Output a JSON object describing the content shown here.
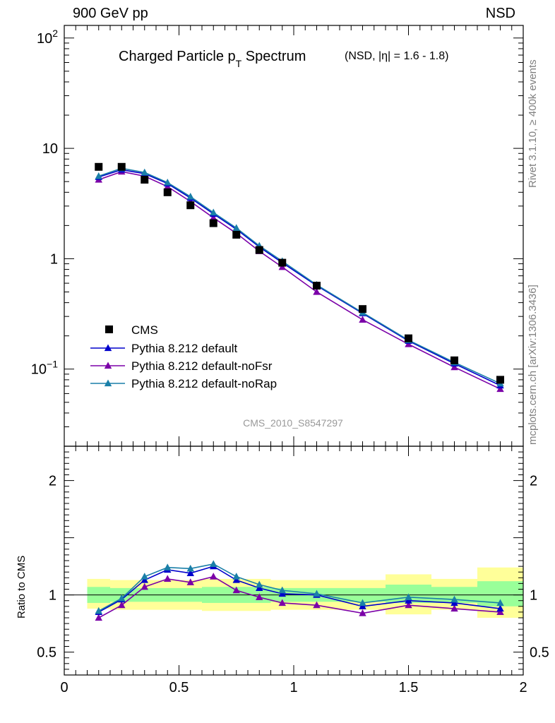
{
  "header": {
    "left": "900 GeV pp",
    "right": "NSD"
  },
  "side_labels": {
    "rivet": "Rivet 3.1.10, ≥ 400k events",
    "mcplots": "mcplots.cern.ch [arXiv:1306.3436]"
  },
  "chart_data": {
    "type": "scatter",
    "title_main": "Charged Particle p",
    "title_sub": "T",
    "title_tail": " Spectrum",
    "title_small": "(NSD, |η| = 1.6 - 1.8)",
    "watermark": "CMS_2010_S8547297",
    "xlim": [
      0,
      2
    ],
    "ylim_main": [
      0.02,
      130
    ],
    "ylim_ratio": [
      0.3,
      2.3
    ],
    "ratio_ylabel": "Ratio to CMS",
    "x_ticks": [
      "0",
      "0.5",
      "1",
      "1.5",
      "2"
    ],
    "main_ticks": [
      "10",
      "1"
    ],
    "main_ticks_exp": [
      {
        "base": "10",
        "exp": "2"
      },
      {
        "base": "10",
        "exp": "−1"
      }
    ],
    "ratio_ticks": [
      "2",
      "1",
      "0.5"
    ],
    "ratio_ticks_right": [
      "2",
      "1",
      "0.5"
    ],
    "data": {
      "name": "CMS",
      "x": [
        0.15,
        0.25,
        0.35,
        0.45,
        0.55,
        0.65,
        0.75,
        0.85,
        0.95,
        1.1,
        1.3,
        1.5,
        1.7,
        1.9
      ],
      "y": [
        6.8,
        6.8,
        5.2,
        4.0,
        3.05,
        2.1,
        1.65,
        1.2,
        0.92,
        0.57,
        0.35,
        0.19,
        0.12,
        0.08
      ]
    },
    "series": [
      {
        "name": "Pythia 8.212 default",
        "color": "#0000cc",
        "values": [
          5.5,
          6.4,
          5.9,
          4.8,
          3.55,
          2.55,
          1.85,
          1.28,
          0.92,
          0.57,
          0.32,
          0.18,
          0.112,
          0.071
        ],
        "ratio": [
          0.85,
          0.96,
          1.13,
          1.22,
          1.19,
          1.25,
          1.13,
          1.06,
          1.01,
          1.0,
          0.9,
          0.95,
          0.93,
          0.88
        ]
      },
      {
        "name": "Pythia 8.212 default-noFsr",
        "color": "#7b00a8",
        "values": [
          5.2,
          6.15,
          5.6,
          4.5,
          3.3,
          2.35,
          1.7,
          1.17,
          0.84,
          0.5,
          0.28,
          0.168,
          0.104,
          0.066
        ],
        "ratio": [
          0.8,
          0.91,
          1.07,
          1.14,
          1.11,
          1.16,
          1.04,
          0.98,
          0.93,
          0.91,
          0.84,
          0.91,
          0.88,
          0.85
        ]
      },
      {
        "name": "Pythia 8.212 default-noRap",
        "color": "#1a7fa8",
        "values": [
          5.6,
          6.6,
          6.05,
          4.9,
          3.65,
          2.62,
          1.9,
          1.31,
          0.95,
          0.58,
          0.325,
          0.183,
          0.115,
          0.074
        ],
        "ratio": [
          0.86,
          0.97,
          1.16,
          1.24,
          1.23,
          1.27,
          1.16,
          1.09,
          1.04,
          1.01,
          0.93,
          0.98,
          0.96,
          0.93
        ]
      }
    ],
    "bands": {
      "x_edges": [
        0.1,
        0.2,
        0.3,
        0.4,
        0.5,
        0.6,
        0.7,
        0.8,
        0.9,
        1.0,
        1.2,
        1.4,
        1.6,
        1.8,
        2.0
      ],
      "stat_lo": [
        0.93,
        0.94,
        0.94,
        0.94,
        0.94,
        0.93,
        0.93,
        0.93,
        0.94,
        0.94,
        0.94,
        0.93,
        0.93,
        0.9
      ],
      "stat_hi": [
        1.07,
        1.06,
        1.06,
        1.06,
        1.06,
        1.07,
        1.07,
        1.07,
        1.06,
        1.06,
        1.06,
        1.09,
        1.07,
        1.12
      ],
      "tot_lo": [
        0.88,
        0.87,
        0.87,
        0.87,
        0.87,
        0.86,
        0.86,
        0.86,
        0.87,
        0.87,
        0.87,
        0.83,
        0.87,
        0.8
      ],
      "tot_hi": [
        1.14,
        1.13,
        1.13,
        1.13,
        1.13,
        1.14,
        1.14,
        1.14,
        1.13,
        1.13,
        1.13,
        1.18,
        1.14,
        1.24
      ],
      "stat_color": "#99ff99",
      "tot_color": "#ffff99"
    },
    "legend_position": "lower-left"
  }
}
